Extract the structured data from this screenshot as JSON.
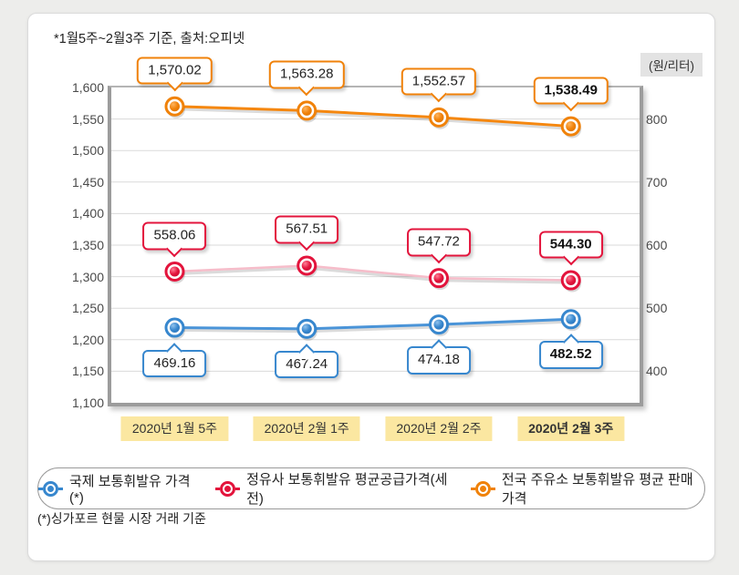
{
  "header": {
    "note": "*1월5주~2월3주 기준, 출처:오피넷",
    "unit_label": "(원/리터)"
  },
  "footer": {
    "note": "(*)싱가포르 현물 시장 거래 기준"
  },
  "legend": {
    "items": [
      {
        "id": "international",
        "label": "국제 보통휘발유 가격(*)",
        "color": "#3787CE"
      },
      {
        "id": "refinery",
        "label": "정유사 보통휘발유 평균공급가격(세전)",
        "color": "#E3143C"
      },
      {
        "id": "station",
        "label": "전국 주유소 보통휘발유 평균 판매가격",
        "color": "#F0820A"
      }
    ]
  },
  "chart_data": {
    "type": "line",
    "title": "",
    "categories": [
      "2020년 1월 5주",
      "2020년 2월 1주",
      "2020년 2월 2주",
      "2020년 2월 3주"
    ],
    "grid": true,
    "legend_position": "bottom",
    "left_axis": {
      "min": 1100,
      "max": 1600,
      "step": 50,
      "ticks": [
        {
          "label": "1,600",
          "value": 1600
        },
        {
          "label": "1,550",
          "value": 1550
        },
        {
          "label": "1,500",
          "value": 1500
        },
        {
          "label": "1,450",
          "value": 1450
        },
        {
          "label": "1,400",
          "value": 1400
        },
        {
          "label": "1,350",
          "value": 1350
        },
        {
          "label": "1,300",
          "value": 1300
        },
        {
          "label": "1,250",
          "value": 1250
        },
        {
          "label": "1,200",
          "value": 1200
        },
        {
          "label": "1,150",
          "value": 1150
        },
        {
          "label": "1,100",
          "value": 1100
        }
      ]
    },
    "right_axis": {
      "left_offset": 750,
      "ticks": [
        {
          "label": "800",
          "value": 800
        },
        {
          "label": "700",
          "value": 700
        },
        {
          "label": "600",
          "value": 600
        },
        {
          "label": "500",
          "value": 500
        },
        {
          "label": "400",
          "value": 400
        }
      ]
    },
    "series": [
      {
        "id": "international",
        "name": "국제 보통휘발유 가격(*)",
        "axis": "right",
        "callout": "below",
        "color": "#3787CE",
        "color_light": "#8FC1EC",
        "color_dark": "#2E74B8",
        "line_color": "#4A94D8",
        "line_width": 3,
        "values": [
          469.16,
          467.24,
          474.18,
          482.52
        ],
        "labels": [
          "469.16",
          "467.24",
          "474.18",
          "482.52"
        ]
      },
      {
        "id": "refinery",
        "name": "정유사 보통휘발유 평균공급가격(세전)",
        "axis": "right",
        "callout": "above",
        "color": "#E3143C",
        "color_light": "#FF7E96",
        "color_dark": "#C60E33",
        "line_color": "#F6BDCA",
        "line_width": 2.5,
        "values": [
          558.06,
          567.51,
          547.72,
          544.3
        ],
        "labels": [
          "558.06",
          "567.51",
          "547.72",
          "544.30"
        ]
      },
      {
        "id": "station",
        "name": "전국 주유소 보통휘발유 평균 판매가격",
        "axis": "left",
        "callout": "above",
        "color": "#F0820A",
        "color_light": "#FFB45E",
        "color_dark": "#DE7300",
        "line_color": "#F5870F",
        "line_width": 3,
        "values": [
          1570.02,
          1563.28,
          1552.57,
          1538.49
        ],
        "labels": [
          "1,570.02",
          "1,563.28",
          "1,552.57",
          "1,538.49"
        ]
      }
    ]
  }
}
